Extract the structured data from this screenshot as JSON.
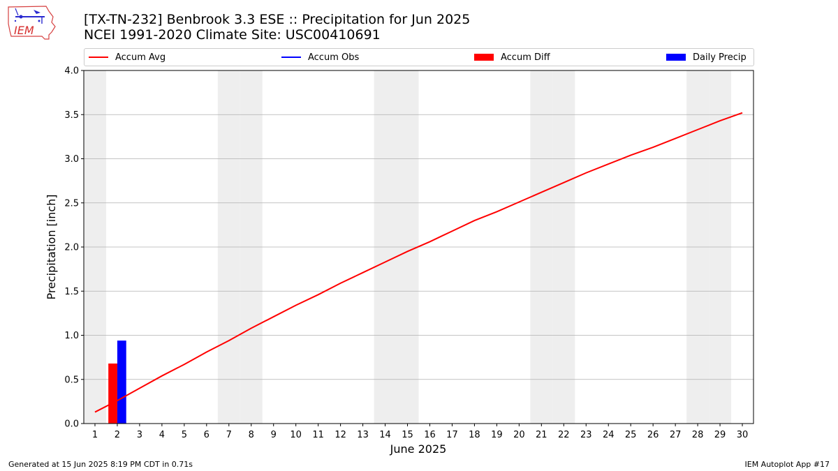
{
  "header": {
    "title_line1": "[TX-TN-232] Benbrook 3.3 ESE :: Precipitation for Jun 2025",
    "title_line2": "NCEI 1991-2020 Climate Site: USC00410691",
    "logo_text": "IEM"
  },
  "footer": {
    "left": "Generated at 15 Jun 2025 8:19 PM CDT in 0.71s",
    "right": "IEM Autoplot App #17"
  },
  "colors": {
    "accum_avg": "#ff0000",
    "accum_obs": "#0000ff",
    "accum_diff": "#ff0000",
    "daily_precip": "#0000ff",
    "weekend_shade": "#eeeeee",
    "grid": "#b0b0b0"
  },
  "chart_data": {
    "type": "bar",
    "xlabel": "June 2025",
    "ylabel": "Precipitation [inch]",
    "ylim": [
      0,
      4.0
    ],
    "xlim": [
      0.5,
      30.5
    ],
    "yticks": [
      "0.0",
      "0.5",
      "1.0",
      "1.5",
      "2.0",
      "2.5",
      "3.0",
      "3.5",
      "4.0"
    ],
    "xticks": [
      "1",
      "2",
      "3",
      "4",
      "5",
      "6",
      "7",
      "8",
      "9",
      "10",
      "11",
      "12",
      "13",
      "14",
      "15",
      "16",
      "17",
      "18",
      "19",
      "20",
      "21",
      "22",
      "23",
      "24",
      "25",
      "26",
      "27",
      "28",
      "29",
      "30"
    ],
    "grid": "horizontal",
    "legend_placement": "top",
    "weekend_days": [
      1,
      7,
      8,
      14,
      15,
      21,
      22,
      28,
      29
    ],
    "legend": [
      "Accum Avg",
      "Accum Obs",
      "Accum Diff",
      "Daily Precip"
    ],
    "series": [
      {
        "name": "Accum Avg",
        "type": "line",
        "x": [
          1,
          2,
          3,
          4,
          5,
          6,
          7,
          8,
          9,
          10,
          11,
          12,
          13,
          14,
          15,
          16,
          17,
          18,
          19,
          20,
          21,
          22,
          23,
          24,
          25,
          26,
          27,
          28,
          29,
          30
        ],
        "values": [
          0.13,
          0.26,
          0.4,
          0.54,
          0.67,
          0.81,
          0.94,
          1.08,
          1.21,
          1.34,
          1.46,
          1.59,
          1.71,
          1.83,
          1.95,
          2.06,
          2.18,
          2.3,
          2.4,
          2.51,
          2.62,
          2.73,
          2.84,
          2.94,
          3.04,
          3.13,
          3.23,
          3.33,
          3.43,
          3.52
        ]
      },
      {
        "name": "Accum Obs",
        "type": "line",
        "x": [],
        "values": []
      },
      {
        "name": "Accum Diff",
        "type": "bar",
        "x": [
          2
        ],
        "values": [
          0.68
        ]
      },
      {
        "name": "Daily Precip",
        "type": "bar",
        "x": [
          2
        ],
        "values": [
          0.94
        ]
      }
    ]
  }
}
